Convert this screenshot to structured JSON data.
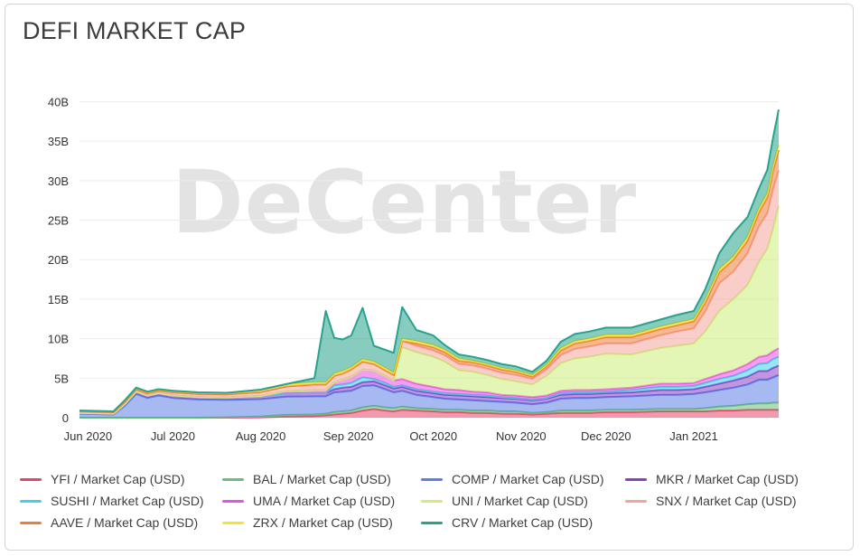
{
  "chart_data": {
    "type": "area",
    "stacked": true,
    "title": "DEFI MARKET CAP",
    "watermark": "DeCenter",
    "xlabel": "",
    "ylabel": "",
    "grid": true,
    "legend_position": "bottom",
    "ylim": [
      0,
      42000000000
    ],
    "y_ticks": [
      {
        "value": 0,
        "label": "0"
      },
      {
        "value": 5000000000,
        "label": "5B"
      },
      {
        "value": 10000000000,
        "label": "10B"
      },
      {
        "value": 15000000000,
        "label": "15B"
      },
      {
        "value": 20000000000,
        "label": "20B"
      },
      {
        "value": 25000000000,
        "label": "25B"
      },
      {
        "value": 30000000000,
        "label": "30B"
      },
      {
        "value": 35000000000,
        "label": "35B"
      },
      {
        "value": 40000000000,
        "label": "40B"
      }
    ],
    "x_ticks": [
      {
        "date": "2020-06-01",
        "label": "Jun 2020"
      },
      {
        "date": "2020-07-01",
        "label": "Jul 2020"
      },
      {
        "date": "2020-08-01",
        "label": "Aug 2020"
      },
      {
        "date": "2020-09-01",
        "label": "Sep 2020"
      },
      {
        "date": "2020-10-01",
        "label": "Oct 2020"
      },
      {
        "date": "2020-11-01",
        "label": "Nov 2020"
      },
      {
        "date": "2020-12-01",
        "label": "Dec 2020"
      },
      {
        "date": "2021-01-01",
        "label": "Jan 2021"
      }
    ],
    "x": [
      "2020-05-29",
      "2020-06-10",
      "2020-06-14",
      "2020-06-18",
      "2020-06-22",
      "2020-06-26",
      "2020-07-01",
      "2020-07-10",
      "2020-07-20",
      "2020-08-01",
      "2020-08-10",
      "2020-08-20",
      "2020-08-24",
      "2020-08-27",
      "2020-08-30",
      "2020-09-02",
      "2020-09-06",
      "2020-09-10",
      "2020-09-14",
      "2020-09-17",
      "2020-09-20",
      "2020-09-25",
      "2020-10-01",
      "2020-10-05",
      "2020-10-10",
      "2020-10-15",
      "2020-10-20",
      "2020-10-25",
      "2020-10-30",
      "2020-11-05",
      "2020-11-10",
      "2020-11-15",
      "2020-11-20",
      "2020-11-25",
      "2020-12-01",
      "2020-12-10",
      "2020-12-20",
      "2020-12-26",
      "2021-01-01",
      "2021-01-05",
      "2021-01-10",
      "2021-01-15",
      "2021-01-20",
      "2021-01-24",
      "2021-01-27",
      "2021-01-29",
      "2021-01-31"
    ],
    "series": [
      {
        "name": "YFI / Market Cap (USD)",
        "color": "#e8456b",
        "values": [
          0,
          0,
          0,
          0,
          0,
          0,
          0,
          0,
          0,
          0.05,
          0.15,
          0.2,
          0.3,
          0.4,
          0.5,
          0.6,
          0.9,
          1.1,
          0.9,
          0.8,
          1.0,
          0.9,
          0.8,
          0.7,
          0.7,
          0.6,
          0.6,
          0.5,
          0.5,
          0.4,
          0.5,
          0.6,
          0.6,
          0.6,
          0.7,
          0.7,
          0.8,
          0.8,
          0.8,
          0.8,
          0.9,
          0.9,
          1.0,
          1.0,
          1.0,
          1.0,
          1.0
        ]
      },
      {
        "name": "BAL / Market Cap (USD)",
        "color": "#69c07a",
        "values": [
          0,
          0,
          0,
          0,
          0,
          0,
          0,
          0,
          0.05,
          0.1,
          0.2,
          0.2,
          0.2,
          0.3,
          0.3,
          0.3,
          0.4,
          0.4,
          0.4,
          0.4,
          0.4,
          0.3,
          0.3,
          0.3,
          0.3,
          0.3,
          0.3,
          0.3,
          0.3,
          0.2,
          0.2,
          0.3,
          0.3,
          0.3,
          0.3,
          0.3,
          0.3,
          0.3,
          0.3,
          0.4,
          0.5,
          0.6,
          0.7,
          0.8,
          0.8,
          0.9,
          0.9
        ]
      },
      {
        "name": "COMP / Market Cap (USD)",
        "color": "#5c7fe6",
        "values": [
          0.5,
          0.4,
          1.5,
          3.0,
          2.5,
          2.8,
          2.5,
          2.3,
          2.2,
          2.2,
          2.3,
          2.3,
          2.2,
          2.5,
          2.5,
          2.5,
          2.7,
          2.6,
          2.3,
          2.0,
          2.0,
          1.7,
          1.5,
          1.4,
          1.3,
          1.3,
          1.2,
          1.2,
          1.1,
          1.1,
          1.2,
          1.5,
          1.6,
          1.6,
          1.6,
          1.7,
          1.8,
          1.8,
          1.9,
          2.0,
          2.1,
          2.3,
          2.5,
          3.0,
          3.0,
          3.2,
          3.5
        ]
      },
      {
        "name": "MKR / Market Cap (USD)",
        "color": "#8a3fc7",
        "values": [
          0.1,
          0.1,
          0.2,
          0.3,
          0.3,
          0.3,
          0.3,
          0.3,
          0.3,
          0.4,
          0.4,
          0.4,
          0.4,
          0.4,
          0.5,
          0.5,
          0.5,
          0.5,
          0.5,
          0.5,
          0.5,
          0.5,
          0.5,
          0.5,
          0.5,
          0.5,
          0.5,
          0.5,
          0.5,
          0.5,
          0.5,
          0.5,
          0.5,
          0.5,
          0.5,
          0.5,
          0.6,
          0.6,
          0.6,
          0.7,
          0.8,
          0.9,
          1.0,
          1.1,
          1.1,
          1.2,
          1.2
        ]
      },
      {
        "name": "SUSHI / Market Cap (USD)",
        "color": "#41d1e8",
        "values": [
          0,
          0,
          0,
          0,
          0,
          0,
          0,
          0,
          0,
          0,
          0,
          0,
          0,
          0.5,
          0.4,
          0.5,
          0.6,
          0.3,
          0.3,
          0.2,
          0.2,
          0.2,
          0.2,
          0.2,
          0.2,
          0.2,
          0.2,
          0.1,
          0.1,
          0.1,
          0.1,
          0.2,
          0.2,
          0.2,
          0.2,
          0.3,
          0.4,
          0.4,
          0.4,
          0.5,
          0.6,
          0.6,
          0.8,
          0.9,
          1.0,
          1.1,
          1.1
        ]
      },
      {
        "name": "UMA / Market Cap (USD)",
        "color": "#ea4fe6",
        "values": [
          0,
          0,
          0,
          0,
          0,
          0,
          0,
          0,
          0,
          0,
          0.3,
          0.4,
          0.4,
          0.4,
          0.6,
          0.8,
          1.0,
          1.1,
          0.9,
          0.8,
          0.8,
          0.7,
          0.6,
          0.5,
          0.5,
          0.4,
          0.4,
          0.3,
          0.3,
          0.3,
          0.3,
          0.3,
          0.3,
          0.3,
          0.3,
          0.3,
          0.4,
          0.4,
          0.4,
          0.5,
          0.6,
          0.7,
          0.8,
          0.9,
          1.0,
          1.0,
          1.1
        ]
      },
      {
        "name": "UNI / Market Cap (USD)",
        "color": "#cdee7a",
        "values": [
          0,
          0,
          0,
          0,
          0,
          0,
          0,
          0,
          0,
          0,
          0,
          0,
          0,
          0,
          0,
          0,
          0,
          0,
          0,
          0,
          4.0,
          4.0,
          3.8,
          3.5,
          2.5,
          2.5,
          2.2,
          2.0,
          1.8,
          1.6,
          2.5,
          3.5,
          4.0,
          4.2,
          4.5,
          4.2,
          4.5,
          4.8,
          5.0,
          6.0,
          8.0,
          9.0,
          10.0,
          12.0,
          13.5,
          15.5,
          18.0
        ]
      },
      {
        "name": "SNX / Market Cap (USD)",
        "color": "#f4a59a",
        "values": [
          0.2,
          0.2,
          0.3,
          0.3,
          0.3,
          0.3,
          0.4,
          0.4,
          0.4,
          0.5,
          0.6,
          0.7,
          0.7,
          0.8,
          0.8,
          0.9,
          1.0,
          0.8,
          0.7,
          0.7,
          0.8,
          0.8,
          0.8,
          0.8,
          0.8,
          0.8,
          0.8,
          0.8,
          0.8,
          0.7,
          0.8,
          1.0,
          1.2,
          1.3,
          1.3,
          1.4,
          1.6,
          1.8,
          1.9,
          2.5,
          3.5,
          3.5,
          4.0,
          4.5,
          4.5,
          5.0,
          4.5
        ]
      },
      {
        "name": "AAVE / Market Cap (USD)",
        "color": "#ee7c3b",
        "values": [
          0,
          0,
          0,
          0,
          0,
          0,
          0,
          0,
          0,
          0,
          0,
          0,
          0,
          0,
          0,
          0,
          0,
          0,
          0,
          0,
          0,
          0.3,
          0.4,
          0.4,
          0.4,
          0.4,
          0.4,
          0.4,
          0.4,
          0.3,
          0.4,
          0.6,
          0.7,
          0.7,
          0.8,
          0.8,
          0.8,
          0.8,
          0.9,
          1.1,
          1.4,
          1.5,
          1.6,
          1.8,
          2.0,
          2.4,
          2.6
        ]
      },
      {
        "name": "ZRX / Market Cap (USD)",
        "color": "#f5e42e",
        "values": [
          0.1,
          0.1,
          0.2,
          0.2,
          0.2,
          0.2,
          0.2,
          0.2,
          0.2,
          0.3,
          0.3,
          0.3,
          0.3,
          0.3,
          0.3,
          0.3,
          0.3,
          0.3,
          0.3,
          0.3,
          0.3,
          0.3,
          0.3,
          0.3,
          0.3,
          0.2,
          0.2,
          0.2,
          0.2,
          0.2,
          0.2,
          0.3,
          0.3,
          0.3,
          0.3,
          0.3,
          0.3,
          0.3,
          0.3,
          0.4,
          0.4,
          0.4,
          0.5,
          0.5,
          0.5,
          0.6,
          0.6
        ]
      },
      {
        "name": "CRV / Market Cap (USD)",
        "color": "#26a28d",
        "values": [
          0,
          0,
          0,
          0,
          0,
          0,
          0,
          0,
          0,
          0,
          0,
          0.5,
          9.0,
          4.5,
          4.0,
          4.0,
          6.5,
          2.0,
          2.3,
          2.5,
          4.0,
          1.4,
          1.2,
          0.6,
          0.5,
          0.5,
          0.5,
          0.5,
          0.5,
          0.4,
          0.5,
          0.8,
          0.9,
          0.9,
          0.9,
          0.9,
          0.9,
          1.0,
          1.0,
          1.3,
          2.0,
          3.0,
          2.5,
          2.5,
          3.0,
          3.5,
          4.5
        ]
      }
    ],
    "value_unit": "B"
  }
}
